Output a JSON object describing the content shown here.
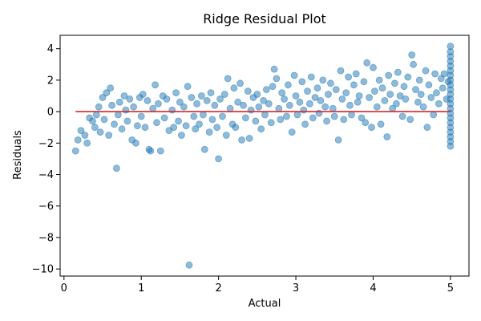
{
  "chart_data": {
    "type": "scatter",
    "title": "Ridge Residual Plot",
    "xlabel": "Actual",
    "ylabel": "Residuals",
    "xlim": [
      -0.05,
      5.24
    ],
    "ylim": [
      -10.45,
      4.85
    ],
    "xticks": [
      0,
      1,
      2,
      3,
      4,
      5
    ],
    "yticks": [
      -10,
      -8,
      -6,
      -4,
      -2,
      0,
      2,
      4
    ],
    "grid": false,
    "legend": "none",
    "colors": {
      "points": "#1f77b4",
      "zero_line": "#d62728"
    },
    "zero_line": {
      "x": [
        0.15,
        5.0
      ],
      "y": [
        0,
        0
      ]
    },
    "series": [
      {
        "points": [
          [
            0.15,
            -2.5
          ],
          [
            0.18,
            -1.8
          ],
          [
            0.22,
            -1.2
          ],
          [
            0.27,
            -1.5
          ],
          [
            0.3,
            -2.0
          ],
          [
            0.33,
            -0.4
          ],
          [
            0.37,
            -0.6
          ],
          [
            0.4,
            -1.0
          ],
          [
            0.42,
            -0.2
          ],
          [
            0.45,
            0.3
          ],
          [
            0.47,
            -1.3
          ],
          [
            0.5,
            0.9
          ],
          [
            0.52,
            -0.5
          ],
          [
            0.55,
            1.2
          ],
          [
            0.58,
            -1.5
          ],
          [
            0.6,
            1.5
          ],
          [
            0.62,
            0.4
          ],
          [
            0.65,
            -0.8
          ],
          [
            0.68,
            -3.6
          ],
          [
            0.7,
            -0.2
          ],
          [
            0.72,
            0.6
          ],
          [
            0.75,
            -1.1
          ],
          [
            0.78,
            1.0
          ],
          [
            0.8,
            0.1
          ],
          [
            0.82,
            -0.6
          ],
          [
            0.85,
            0.8
          ],
          [
            0.88,
            -1.8
          ],
          [
            0.9,
            0.3
          ],
          [
            0.93,
            -2.0
          ],
          [
            0.95,
            -0.9
          ],
          [
            0.98,
            0.9
          ],
          [
            1.0,
            -0.3
          ],
          [
            1.02,
            1.1
          ],
          [
            1.05,
            -1.0
          ],
          [
            1.08,
            0.7
          ],
          [
            1.1,
            -2.4
          ],
          [
            1.12,
            -2.5
          ],
          [
            1.15,
            0.2
          ],
          [
            1.18,
            1.7
          ],
          [
            1.2,
            -0.7
          ],
          [
            1.22,
            0.5
          ],
          [
            1.25,
            -2.5
          ],
          [
            1.28,
            1.0
          ],
          [
            1.3,
            -0.4
          ],
          [
            1.33,
            0.8
          ],
          [
            1.36,
            -1.2
          ],
          [
            1.4,
            0.1
          ],
          [
            1.42,
            -1.0
          ],
          [
            1.45,
            1.2
          ],
          [
            1.48,
            -0.6
          ],
          [
            1.5,
            0.6
          ],
          [
            1.52,
            -1.5
          ],
          [
            1.55,
            0.3
          ],
          [
            1.58,
            -0.9
          ],
          [
            1.6,
            1.6
          ],
          [
            1.62,
            -9.75
          ],
          [
            1.65,
            0.9
          ],
          [
            1.68,
            -0.3
          ],
          [
            1.7,
            -1.1
          ],
          [
            1.72,
            0.5
          ],
          [
            1.75,
            -0.8
          ],
          [
            1.78,
            1.0
          ],
          [
            1.8,
            -0.2
          ],
          [
            1.82,
            -2.4
          ],
          [
            1.85,
            0.7
          ],
          [
            1.88,
            -1.3
          ],
          [
            1.9,
            1.2
          ],
          [
            1.92,
            -0.5
          ],
          [
            1.95,
            0.4
          ],
          [
            1.98,
            -1.0
          ],
          [
            2.0,
            -3.0
          ],
          [
            2.02,
            0.8
          ],
          [
            2.05,
            -0.3
          ],
          [
            2.08,
            1.1
          ],
          [
            2.1,
            -1.5
          ],
          [
            2.12,
            2.1
          ],
          [
            2.15,
            0.2
          ],
          [
            2.18,
            -0.8
          ],
          [
            2.2,
            1.5
          ],
          [
            2.22,
            -1.0
          ],
          [
            2.25,
            0.6
          ],
          [
            2.28,
            1.8
          ],
          [
            2.3,
            -1.8
          ],
          [
            2.32,
            0.4
          ],
          [
            2.35,
            -0.4
          ],
          [
            2.38,
            1.3
          ],
          [
            2.4,
            -1.7
          ],
          [
            2.42,
            0.1
          ],
          [
            2.45,
            0.9
          ],
          [
            2.48,
            -0.6
          ],
          [
            2.5,
            1.1
          ],
          [
            2.52,
            0.3
          ],
          [
            2.55,
            -1.1
          ],
          [
            2.58,
            0.7
          ],
          [
            2.6,
            -0.2
          ],
          [
            2.62,
            1.4
          ],
          [
            2.65,
            0.5
          ],
          [
            2.68,
            -0.7
          ],
          [
            2.7,
            1.6
          ],
          [
            2.72,
            2.7
          ],
          [
            2.75,
            2.1
          ],
          [
            2.78,
            0.2
          ],
          [
            2.8,
            -0.5
          ],
          [
            2.82,
            1.2
          ],
          [
            2.85,
            0.8
          ],
          [
            2.88,
            -0.3
          ],
          [
            2.9,
            1.7
          ],
          [
            2.92,
            0.4
          ],
          [
            2.95,
            -1.3
          ],
          [
            2.98,
            2.3
          ],
          [
            3.0,
            1.0
          ],
          [
            3.02,
            -0.2
          ],
          [
            3.05,
            0.6
          ],
          [
            3.08,
            1.9
          ],
          [
            3.1,
            0.1
          ],
          [
            3.12,
            -0.8
          ],
          [
            3.15,
            1.3
          ],
          [
            3.18,
            0.5
          ],
          [
            3.2,
            2.2
          ],
          [
            3.22,
            -0.4
          ],
          [
            3.25,
            0.9
          ],
          [
            3.28,
            1.5
          ],
          [
            3.3,
            -0.1
          ],
          [
            3.32,
            0.7
          ],
          [
            3.35,
            2.0
          ],
          [
            3.38,
            0.3
          ],
          [
            3.4,
            -0.6
          ],
          [
            3.42,
            1.1
          ],
          [
            3.45,
            1.8
          ],
          [
            3.48,
            0.2
          ],
          [
            3.5,
            -0.3
          ],
          [
            3.52,
            1.4
          ],
          [
            3.55,
            -1.8
          ],
          [
            3.58,
            2.6
          ],
          [
            3.6,
            0.8
          ],
          [
            3.62,
            -0.5
          ],
          [
            3.65,
            1.2
          ],
          [
            3.68,
            2.2
          ],
          [
            3.7,
            0.4
          ],
          [
            3.72,
            -0.2
          ],
          [
            3.75,
            1.7
          ],
          [
            3.78,
            2.4
          ],
          [
            3.8,
            0.6
          ],
          [
            3.82,
            1.0
          ],
          [
            3.85,
            -0.4
          ],
          [
            3.88,
            1.9
          ],
          [
            3.9,
            -0.7
          ],
          [
            3.92,
            3.1
          ],
          [
            3.95,
            0.9
          ],
          [
            3.98,
            -1.0
          ],
          [
            4.0,
            2.8
          ],
          [
            4.02,
            1.3
          ],
          [
            4.05,
            0.3
          ],
          [
            4.08,
            2.0
          ],
          [
            4.1,
            -0.8
          ],
          [
            4.12,
            1.5
          ],
          [
            4.15,
            0.7
          ],
          [
            4.18,
            -1.6
          ],
          [
            4.2,
            2.3
          ],
          [
            4.22,
            1.1
          ],
          [
            4.25,
            0.2
          ],
          [
            4.28,
            1.8
          ],
          [
            4.3,
            0.5
          ],
          [
            4.32,
            2.5
          ],
          [
            4.35,
            1.0
          ],
          [
            4.38,
            -0.3
          ],
          [
            4.4,
            1.6
          ],
          [
            4.42,
            0.8
          ],
          [
            4.45,
            2.2
          ],
          [
            4.48,
            -0.5
          ],
          [
            4.5,
            3.6
          ],
          [
            4.52,
            3.0
          ],
          [
            4.55,
            1.4
          ],
          [
            4.58,
            0.6
          ],
          [
            4.6,
            2.0
          ],
          [
            4.62,
            1.1
          ],
          [
            4.65,
            0.3
          ],
          [
            4.68,
            2.6
          ],
          [
            4.7,
            -1.0
          ],
          [
            4.72,
            1.7
          ],
          [
            4.75,
            0.9
          ],
          [
            4.78,
            -0.2
          ],
          [
            4.8,
            2.4
          ],
          [
            4.82,
            1.2
          ],
          [
            4.85,
            0.5
          ],
          [
            4.88,
            2.1
          ],
          [
            4.9,
            1.5
          ],
          [
            4.92,
            2.4
          ],
          [
            4.95,
            0.8
          ],
          [
            4.97,
            1.9
          ],
          [
            5.0,
            4.15
          ],
          [
            5.0,
            3.8
          ],
          [
            5.0,
            3.5
          ],
          [
            5.0,
            3.2
          ],
          [
            5.0,
            2.9
          ],
          [
            5.0,
            2.6
          ],
          [
            5.0,
            2.3
          ],
          [
            5.0,
            2.0
          ],
          [
            5.0,
            1.7
          ],
          [
            5.0,
            1.4
          ],
          [
            5.0,
            1.1
          ],
          [
            5.0,
            0.8
          ],
          [
            5.0,
            0.5
          ],
          [
            5.0,
            0.2
          ],
          [
            5.0,
            -0.1
          ],
          [
            5.0,
            -0.4
          ],
          [
            5.0,
            -0.7
          ],
          [
            5.0,
            -1.0
          ],
          [
            5.0,
            -1.3
          ],
          [
            5.0,
            -1.6
          ],
          [
            5.0,
            -1.9
          ],
          [
            5.0,
            -2.2
          ]
        ]
      }
    ]
  }
}
